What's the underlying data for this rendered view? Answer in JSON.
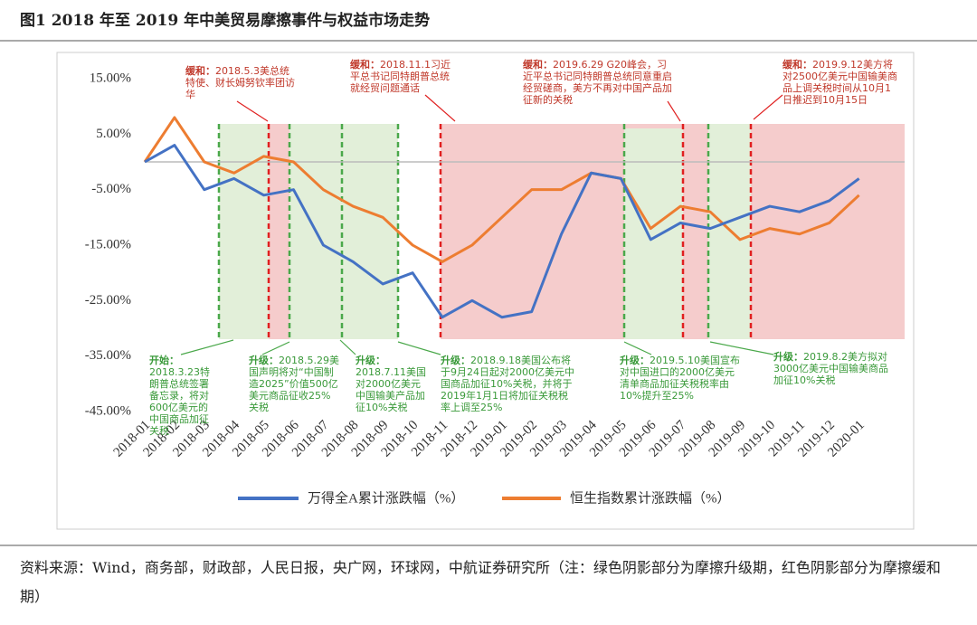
{
  "title": "图1  2018 年至 2019 年中美贸易摩擦事件与权益市场走势",
  "source": "资料来源：Wind，商务部，财政部，人民日报，央广网，环球网，中航证券研究所（注：绿色阴影部分为摩擦升级期，红色阴影部分为摩擦缓和期）",
  "chart_data": {
    "type": "line",
    "categories": [
      "2018-01",
      "2018-02",
      "2018-03",
      "2018-04",
      "2018-05",
      "2018-06",
      "2018-07",
      "2018-08",
      "2018-09",
      "2018-10",
      "2018-11",
      "2018-12",
      "2019-01",
      "2019-02",
      "2019-03",
      "2019-04",
      "2019-05",
      "2019-06",
      "2019-07",
      "2019-08",
      "2019-09",
      "2019-10",
      "2019-11",
      "2019-12",
      "2020-01"
    ],
    "series": [
      {
        "name": "万得全A累计涨跌幅（%）",
        "color": "#4472c4",
        "values": [
          0,
          3,
          -5,
          -3,
          -6,
          -5,
          -15,
          -18,
          -22,
          -20,
          -28,
          -25,
          -28,
          -27,
          -13,
          -2,
          -3,
          -14,
          -11,
          -12,
          -10,
          -8,
          -9,
          -7,
          -3
        ]
      },
      {
        "name": "恒生指数累计涨跌幅（%）",
        "color": "#ed7d31",
        "values": [
          0,
          8,
          0,
          -2,
          1,
          0,
          -5,
          -8,
          -10,
          -15,
          -18,
          -15,
          -10,
          -5,
          -5,
          -2,
          -3,
          -12,
          -8,
          -9,
          -14,
          -12,
          -13,
          -11,
          -6
        ]
      }
    ],
    "ylim": [
      -45,
      15
    ],
    "yticks": [
      {
        "value": -45,
        "label": "-45.00%"
      },
      {
        "value": -35,
        "label": "-35.00%"
      },
      {
        "value": -25,
        "label": "-25.00%"
      },
      {
        "value": -15,
        "label": "-15.00%"
      },
      {
        "value": -5,
        "label": "-5.00%"
      },
      {
        "value": 5,
        "label": "5.00%"
      },
      {
        "value": 15,
        "label": "15.00%"
      }
    ],
    "annotations": [
      {
        "label": "缓和：",
        "text": "2018.5.3美总统特使、财长姆努钦率团访华"
      },
      {
        "label": "缓和：",
        "text": "2018.11.1习近平总书记同特朗普总统就经贸问题通话"
      },
      {
        "label": "缓和：",
        "text": "2019.6.29 G20峰会，习近平总书记同特朗普总统同意重启经贸磋商，美方不再对中国产品加征新的关税"
      },
      {
        "label": "缓和：",
        "text": "2019.9.12美方将对2500亿美元中国输美商品上调关税时间从10月1日推迟到10月15日"
      },
      {
        "label": "开始：",
        "text": "2018.3.23特朗普总统签署备忘录，将对600亿美元的中国商品加征关税"
      },
      {
        "label": "升级：",
        "text": "2018.5.29美国声明将对“中国制造2025”价值500亿美元商品征收25%关税"
      },
      {
        "label": "升级：",
        "text": "2018.7.11美国对2000亿美元中国输美产品加征10%关税"
      },
      {
        "label": "升级：",
        "text": "2018.9.18美国公布将于9月24日起对2000亿美元中国商品加征10%关税，并将于2019年1月1日将加征关税税率上调至25%"
      },
      {
        "label": "升级：",
        "text": "2019.5.10美国宣布对中国进口的2000亿美元清单商品加征关税税率由10%提升至25%"
      },
      {
        "label": "升级：",
        "text": "2019.8.2美方拟对3000亿美元中国输美商品加征10%关税"
      }
    ]
  }
}
